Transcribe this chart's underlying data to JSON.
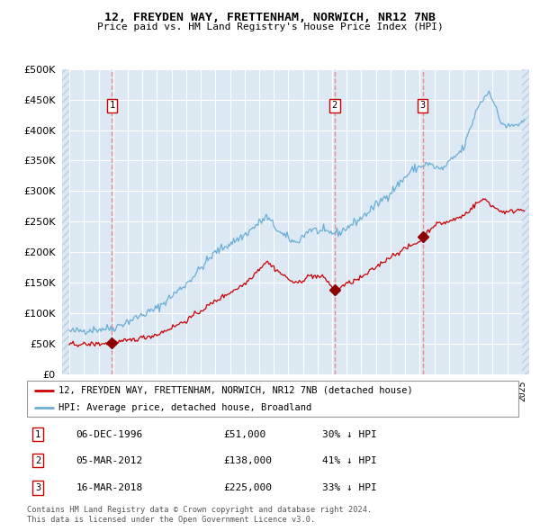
{
  "title": "12, FREYDEN WAY, FRETTENHAM, NORWICH, NR12 7NB",
  "subtitle": "Price paid vs. HM Land Registry's House Price Index (HPI)",
  "legend_property": "12, FREYDEN WAY, FRETTENHAM, NORWICH, NR12 7NB (detached house)",
  "legend_hpi": "HPI: Average price, detached house, Broadland",
  "footer1": "Contains HM Land Registry data © Crown copyright and database right 2024.",
  "footer2": "This data is licensed under the Open Government Licence v3.0.",
  "transactions": [
    {
      "num": 1,
      "date": "06-DEC-1996",
      "price": 51000,
      "pct": "30%",
      "dir": "↓",
      "x": 1996.92
    },
    {
      "num": 2,
      "date": "05-MAR-2012",
      "price": 138000,
      "pct": "41%",
      "dir": "↓",
      "x": 2012.17
    },
    {
      "num": 3,
      "date": "16-MAR-2018",
      "price": 225000,
      "pct": "33%",
      "dir": "↓",
      "x": 2018.21
    }
  ],
  "ylim": [
    0,
    500000
  ],
  "yticks": [
    0,
    50000,
    100000,
    150000,
    200000,
    250000,
    300000,
    350000,
    400000,
    450000,
    500000
  ],
  "xlim_lo": 1993.5,
  "xlim_hi": 2025.5,
  "bg_color": "#dce9f5",
  "hpi_color": "#6baed6",
  "property_color": "#cc0000",
  "vline_color": "#ee8888",
  "marker_color": "#8b0000",
  "grid_color": "#ffffff",
  "hatch_color": "#b8cfe0"
}
